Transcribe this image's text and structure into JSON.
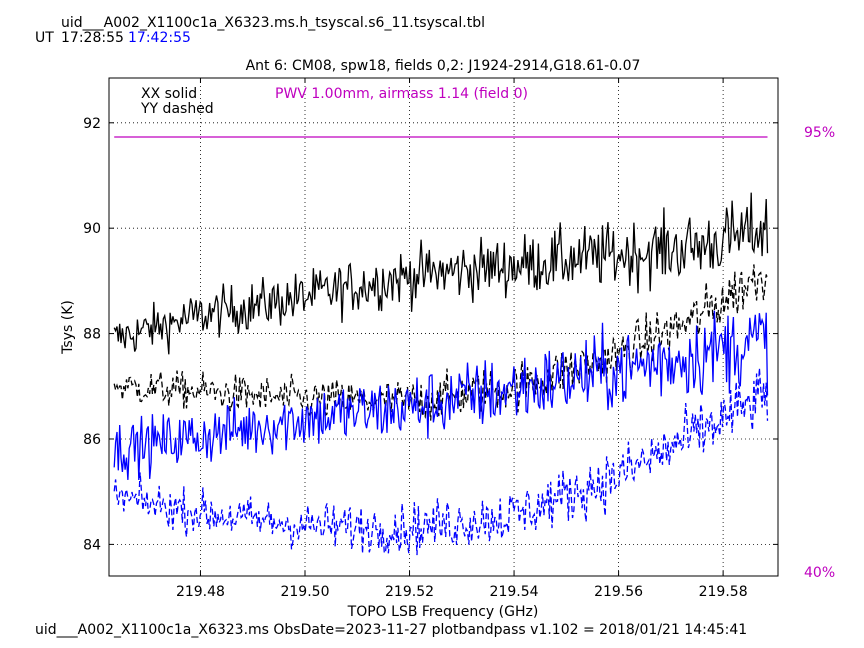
{
  "header": {
    "filename": "uid___A002_X1100c1a_X6323.ms.h_tsyscal.s6_11.tsyscal.tbl",
    "ut_label": "UT",
    "time_start": "17:28:55",
    "time_end": "17:42:55"
  },
  "footer": {
    "text": "uid___A002_X1100c1a_X6323.ms  ObsDate=2023-11-27   plotbandpass v1.102 = 2018/01/21 14:45:41"
  },
  "colors": {
    "xx_yy_field0": "#000000",
    "xx_yy_field2": "#0000ff",
    "pwv": "#bf00bf",
    "time_end": "#0000ff"
  },
  "chart_data": {
    "type": "line",
    "title": "Ant 6: CM08,  spw18,  fields 0,2: J1924-2914,G18.61-0.07",
    "xlabel": "TOPO LSB Frequency (GHz)",
    "ylabel": "Tsys (K)",
    "xlim": [
      219.4625,
      219.5905
    ],
    "ylim": [
      83.4,
      92.85
    ],
    "x_ticks": [
      219.48,
      219.5,
      219.52,
      219.54,
      219.56,
      219.58
    ],
    "x_tick_labels": [
      "219.48",
      "219.50",
      "219.52",
      "219.54",
      "219.56",
      "219.58"
    ],
    "y_ticks": [
      84,
      86,
      88,
      90,
      92
    ],
    "y_tick_labels": [
      "84",
      "86",
      "88",
      "90",
      "92"
    ],
    "grid": true,
    "legend": {
      "placement": "top-left",
      "entries": [
        "XX solid",
        "YY dashed"
      ]
    },
    "annotation": "PWV 1.00mm, airmass 1.14 (field 0)",
    "right_axis_labels": {
      "top": "95%",
      "bottom": "40%"
    },
    "x_range": [
      219.4635,
      219.5885
    ],
    "series": [
      {
        "name": "XX solid",
        "color": "#000000",
        "dash": false,
        "noise": 0.45,
        "trend_x": [
          219.4635,
          219.48,
          219.5,
          219.52,
          219.54,
          219.56,
          219.575,
          219.5885
        ],
        "trend_y": [
          87.9,
          88.35,
          88.7,
          89.1,
          89.3,
          89.5,
          89.65,
          90.0
        ]
      },
      {
        "name": "YY dashed",
        "color": "#000000",
        "dash": true,
        "noise": 0.35,
        "trend_x": [
          219.4635,
          219.48,
          219.5,
          219.52,
          219.54,
          219.56,
          219.575,
          219.5885
        ],
        "trend_y": [
          87.0,
          86.9,
          86.75,
          86.7,
          87.0,
          87.6,
          88.3,
          89.2
        ]
      },
      {
        "name": "XX solid",
        "color": "#0000ff",
        "dash": false,
        "noise": 0.55,
        "trend_x": [
          219.4635,
          219.48,
          219.5,
          219.52,
          219.54,
          219.56,
          219.575,
          219.5885
        ],
        "trend_y": [
          85.8,
          86.05,
          86.4,
          86.6,
          86.95,
          87.3,
          87.6,
          87.9
        ]
      },
      {
        "name": "YY dashed",
        "color": "#0000ff",
        "dash": true,
        "noise": 0.4,
        "trend_x": [
          219.4635,
          219.48,
          219.5,
          219.52,
          219.54,
          219.56,
          219.575,
          219.5885
        ],
        "trend_y": [
          84.9,
          84.6,
          84.35,
          84.3,
          84.55,
          85.3,
          86.1,
          86.85
        ]
      },
      {
        "name": "PWV 1.00mm, airmass 1.14 (field 0)",
        "color": "#bf00bf",
        "dash": false,
        "noise": 0,
        "trend_x": [
          219.4635,
          219.5885
        ],
        "trend_y": [
          91.73,
          91.73
        ]
      }
    ]
  }
}
